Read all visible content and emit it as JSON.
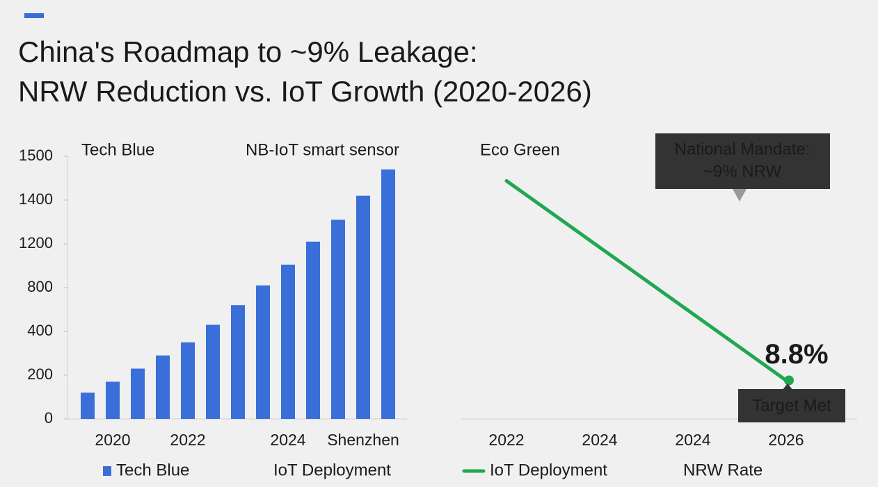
{
  "title": [
    "China's Roadmap to ~9% Leakage:",
    "NRW Reduction vs. IoT Growth (2020-2026)"
  ],
  "chart_data": [
    {
      "type": "bar",
      "annotations": [
        "Tech Blue",
        "NB-IoT smart sensor"
      ],
      "categories": [
        null,
        "2020",
        null,
        null,
        "2022",
        null,
        null,
        null,
        "2024",
        null,
        null,
        "Shenzhen",
        null
      ],
      "series": [
        {
          "name": "Tech Blue",
          "color": "#3a6fd9",
          "values": [
            120,
            170,
            230,
            290,
            350,
            460,
            640,
            820,
            1010,
            1210,
            1310,
            1410,
            1470
          ]
        }
      ],
      "legend_note": "IoT Deployment",
      "yticks": [
        0,
        200,
        400,
        800,
        1200,
        1400,
        1500
      ]
    },
    {
      "type": "line",
      "annotations": [
        "Eco Green"
      ],
      "categories": [
        "2022",
        "2024",
        "2024",
        "2026"
      ],
      "series": [
        {
          "name": "IoT Deployment",
          "color": "#1fa84f",
          "values": [
            54.4,
            39.2,
            24,
            8.8
          ],
          "value_labels": [
            null,
            null,
            null,
            "8.8%"
          ]
        }
      ],
      "legend_note": "NRW Rate",
      "ylim": [
        0,
        60
      ],
      "callouts": [
        {
          "lines": [
            "National Mandate:",
            "~9% NRW"
          ]
        },
        {
          "lines": [
            "Target Met"
          ]
        }
      ]
    }
  ]
}
